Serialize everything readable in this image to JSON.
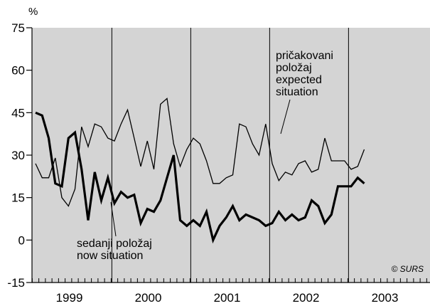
{
  "chart_data": {
    "type": "line",
    "title": "",
    "xlabel": "",
    "ylabel": "%",
    "ylim": [
      -15,
      75
    ],
    "yticks": [
      -15,
      0,
      15,
      30,
      45,
      60,
      75
    ],
    "years": [
      "1999",
      "2000",
      "2001",
      "2002",
      "2003"
    ],
    "x_range": [
      "1999-01",
      "2003-12"
    ],
    "x_unit": "month",
    "grid": false,
    "vertical_year_separators": true,
    "plot_background": "#d4d4d4",
    "credit": "© SURS",
    "annotations": {
      "expected": [
        "pričakovani",
        "položaj",
        "expected",
        "situation"
      ],
      "now": [
        "sedanji položaj",
        "now situation"
      ]
    },
    "series": [
      {
        "name": "pričakovani položaj expected situation",
        "line_width": "thin",
        "x": [
          "1999-01",
          "1999-02",
          "1999-03",
          "1999-04",
          "1999-05",
          "1999-06",
          "1999-07",
          "1999-08",
          "1999-09",
          "1999-10",
          "1999-11",
          "1999-12",
          "2000-01",
          "2000-02",
          "2000-03",
          "2000-04",
          "2000-05",
          "2000-06",
          "2000-07",
          "2000-08",
          "2000-09",
          "2000-10",
          "2000-11",
          "2000-12",
          "2001-01",
          "2001-02",
          "2001-03",
          "2001-04",
          "2001-05",
          "2001-06",
          "2001-07",
          "2001-08",
          "2001-09",
          "2001-10",
          "2001-11",
          "2001-12",
          "2002-01",
          "2002-02",
          "2002-03",
          "2002-04",
          "2002-05",
          "2002-06",
          "2002-07",
          "2002-08",
          "2002-09",
          "2002-10",
          "2002-11",
          "2002-12",
          "2003-01",
          "2003-02",
          "2003-03",
          "2003-04",
          "2003-05",
          "2003-06",
          "2003-07",
          "2003-08",
          "2003-09",
          "2003-10"
        ],
        "values": [
          27,
          22,
          22,
          29,
          15,
          12,
          18,
          40,
          33,
          41,
          40,
          36,
          35,
          41,
          46,
          36,
          26,
          35,
          25,
          48,
          50,
          34,
          26,
          32,
          36,
          34,
          28,
          20,
          20,
          22,
          23,
          41,
          40,
          34,
          30,
          41,
          27,
          21,
          24,
          23,
          27,
          28,
          24,
          25,
          36,
          28,
          28,
          28,
          25,
          26,
          32,
          null,
          null,
          null,
          null,
          null,
          null,
          null
        ]
      },
      {
        "name": "sedanji položaj now situation",
        "line_width": "thick",
        "x": [
          "1999-01",
          "1999-02",
          "1999-03",
          "1999-04",
          "1999-05",
          "1999-06",
          "1999-07",
          "1999-08",
          "1999-09",
          "1999-10",
          "1999-11",
          "1999-12",
          "2000-01",
          "2000-02",
          "2000-03",
          "2000-04",
          "2000-05",
          "2000-06",
          "2000-07",
          "2000-08",
          "2000-09",
          "2000-10",
          "2000-11",
          "2000-12",
          "2001-01",
          "2001-02",
          "2001-03",
          "2001-04",
          "2001-05",
          "2001-06",
          "2001-07",
          "2001-08",
          "2001-09",
          "2001-10",
          "2001-11",
          "2001-12",
          "2002-01",
          "2002-02",
          "2002-03",
          "2002-04",
          "2002-05",
          "2002-06",
          "2002-07",
          "2002-08",
          "2002-09",
          "2002-10",
          "2002-11",
          "2002-12",
          "2003-01",
          "2003-02",
          "2003-03",
          "2003-04",
          "2003-05",
          "2003-06",
          "2003-07",
          "2003-08",
          "2003-09",
          "2003-10"
        ],
        "values": [
          45,
          44,
          36,
          20,
          19,
          36,
          38,
          25,
          7,
          24,
          14,
          22,
          13,
          17,
          15,
          16,
          6,
          11,
          10,
          14,
          22,
          30,
          7,
          5,
          7,
          5,
          10,
          0,
          5,
          8,
          12,
          7,
          9,
          8,
          7,
          5,
          6,
          10,
          7,
          9,
          7,
          8,
          14,
          12,
          6,
          9,
          19,
          19,
          19,
          22,
          20,
          null,
          null,
          null,
          null,
          null,
          null,
          null
        ]
      }
    ]
  }
}
